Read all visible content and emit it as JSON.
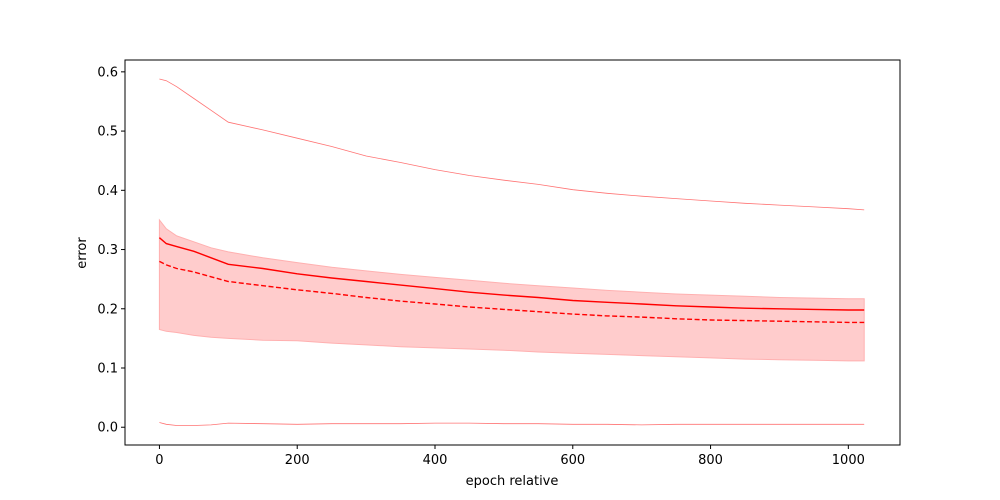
{
  "chart_data": {
    "type": "line",
    "title": "",
    "xlabel": "epoch relative",
    "ylabel": "error",
    "xlim": [
      -50,
      1075
    ],
    "ylim": [
      -0.03,
      0.62
    ],
    "grid": false,
    "legend": "none",
    "x_ticks": [
      0,
      200,
      400,
      600,
      800,
      1000
    ],
    "x_tick_labels": [
      "0",
      "200",
      "400",
      "600",
      "800",
      "1000"
    ],
    "y_ticks": [
      0.0,
      0.1,
      0.2,
      0.3,
      0.4,
      0.5,
      0.6
    ],
    "y_tick_labels": [
      "0.0",
      "0.1",
      "0.2",
      "0.3",
      "0.4",
      "0.5",
      "0.6"
    ],
    "color": "#ff0000",
    "band_color": "#ffcccc",
    "x": [
      0,
      10,
      25,
      50,
      75,
      100,
      150,
      200,
      250,
      300,
      350,
      400,
      450,
      500,
      550,
      600,
      650,
      700,
      750,
      800,
      850,
      900,
      950,
      1000,
      1023
    ],
    "series": [
      {
        "style": "solid",
        "values": [
          0.32,
          0.31,
          0.305,
          0.297,
          0.286,
          0.275,
          0.268,
          0.259,
          0.252,
          0.246,
          0.24,
          0.234,
          0.228,
          0.223,
          0.219,
          0.214,
          0.211,
          0.208,
          0.205,
          0.203,
          0.201,
          0.2,
          0.199,
          0.198,
          0.198
        ]
      },
      {
        "style": "dashed",
        "values": [
          0.28,
          0.274,
          0.268,
          0.262,
          0.254,
          0.246,
          0.239,
          0.232,
          0.226,
          0.219,
          0.213,
          0.208,
          0.203,
          0.199,
          0.195,
          0.191,
          0.188,
          0.186,
          0.183,
          0.181,
          0.18,
          0.179,
          0.178,
          0.177,
          0.177
        ]
      },
      {
        "style": "thin",
        "values": [
          0.588,
          0.585,
          0.575,
          0.555,
          0.535,
          0.515,
          0.502,
          0.488,
          0.474,
          0.458,
          0.447,
          0.435,
          0.425,
          0.417,
          0.41,
          0.401,
          0.395,
          0.39,
          0.386,
          0.382,
          0.378,
          0.375,
          0.372,
          0.369,
          0.367
        ]
      },
      {
        "style": "thin",
        "values": [
          0.008,
          0.005,
          0.003,
          0.003,
          0.004,
          0.007,
          0.006,
          0.005,
          0.006,
          0.006,
          0.006,
          0.007,
          0.007,
          0.006,
          0.006,
          0.005,
          0.005,
          0.004,
          0.005,
          0.005,
          0.005,
          0.005,
          0.005,
          0.005,
          0.005
        ]
      }
    ],
    "band": {
      "upper": [
        0.35,
        0.335,
        0.323,
        0.313,
        0.303,
        0.296,
        0.286,
        0.278,
        0.27,
        0.264,
        0.258,
        0.253,
        0.248,
        0.243,
        0.239,
        0.235,
        0.231,
        0.228,
        0.225,
        0.223,
        0.221,
        0.219,
        0.218,
        0.217,
        0.217
      ],
      "lower": [
        0.165,
        0.162,
        0.16,
        0.155,
        0.152,
        0.15,
        0.147,
        0.146,
        0.142,
        0.139,
        0.136,
        0.134,
        0.132,
        0.13,
        0.127,
        0.125,
        0.123,
        0.121,
        0.119,
        0.117,
        0.115,
        0.114,
        0.113,
        0.112,
        0.112
      ]
    }
  }
}
